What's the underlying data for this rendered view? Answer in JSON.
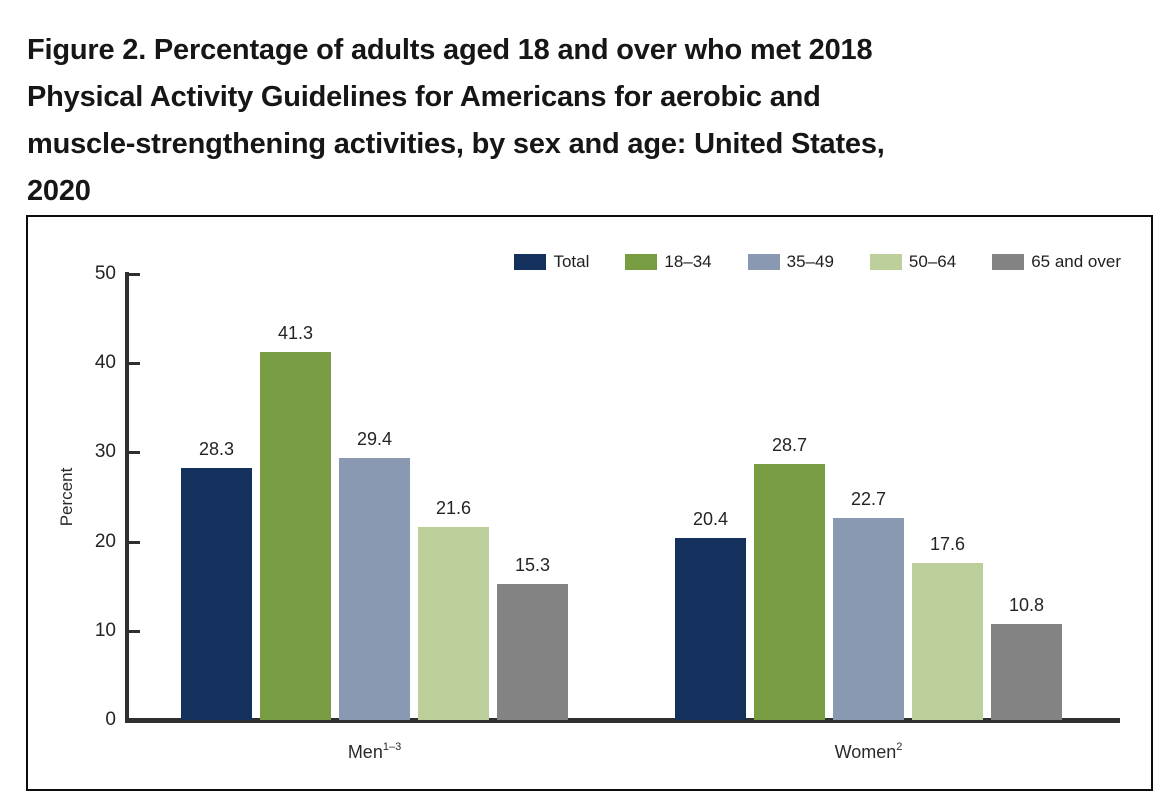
{
  "figure": {
    "title_lines": [
      "Figure 2. Percentage of adults aged 18 and over who met 2018",
      "Physical Activity Guidelines for Americans for aerobic and",
      "muscle-strengthening activities, by sex and age: United States,",
      "2020"
    ]
  },
  "chart_data": {
    "type": "bar",
    "title": "Figure 2. Percentage of adults aged 18 and over who met 2018 Physical Activity Guidelines for Americans for aerobic and muscle-strengthening activities, by sex and age: United States, 2020",
    "xlabel": "",
    "ylabel": "Percent",
    "ylim": [
      0,
      50
    ],
    "yticks": [
      0,
      10,
      20,
      30,
      40,
      50
    ],
    "grid": false,
    "legend_position": "top-right",
    "value_labels": true,
    "groups": [
      {
        "label": "Men",
        "superscript": "1–3"
      },
      {
        "label": "Women",
        "superscript": "2"
      }
    ],
    "series": [
      {
        "name": "Total",
        "color": "#14305C",
        "values": [
          28.3,
          20.4
        ]
      },
      {
        "name": "18–34",
        "color": "#789C41",
        "values": [
          41.3,
          28.7
        ]
      },
      {
        "name": "35–49",
        "color": "#8A99B2",
        "values": [
          29.4,
          22.7
        ]
      },
      {
        "name": "50–64",
        "color": "#BCCF9A",
        "values": [
          21.6,
          17.6
        ]
      },
      {
        "name": "65 and over",
        "color": "#838383",
        "values": [
          15.3,
          10.8
        ]
      }
    ]
  }
}
